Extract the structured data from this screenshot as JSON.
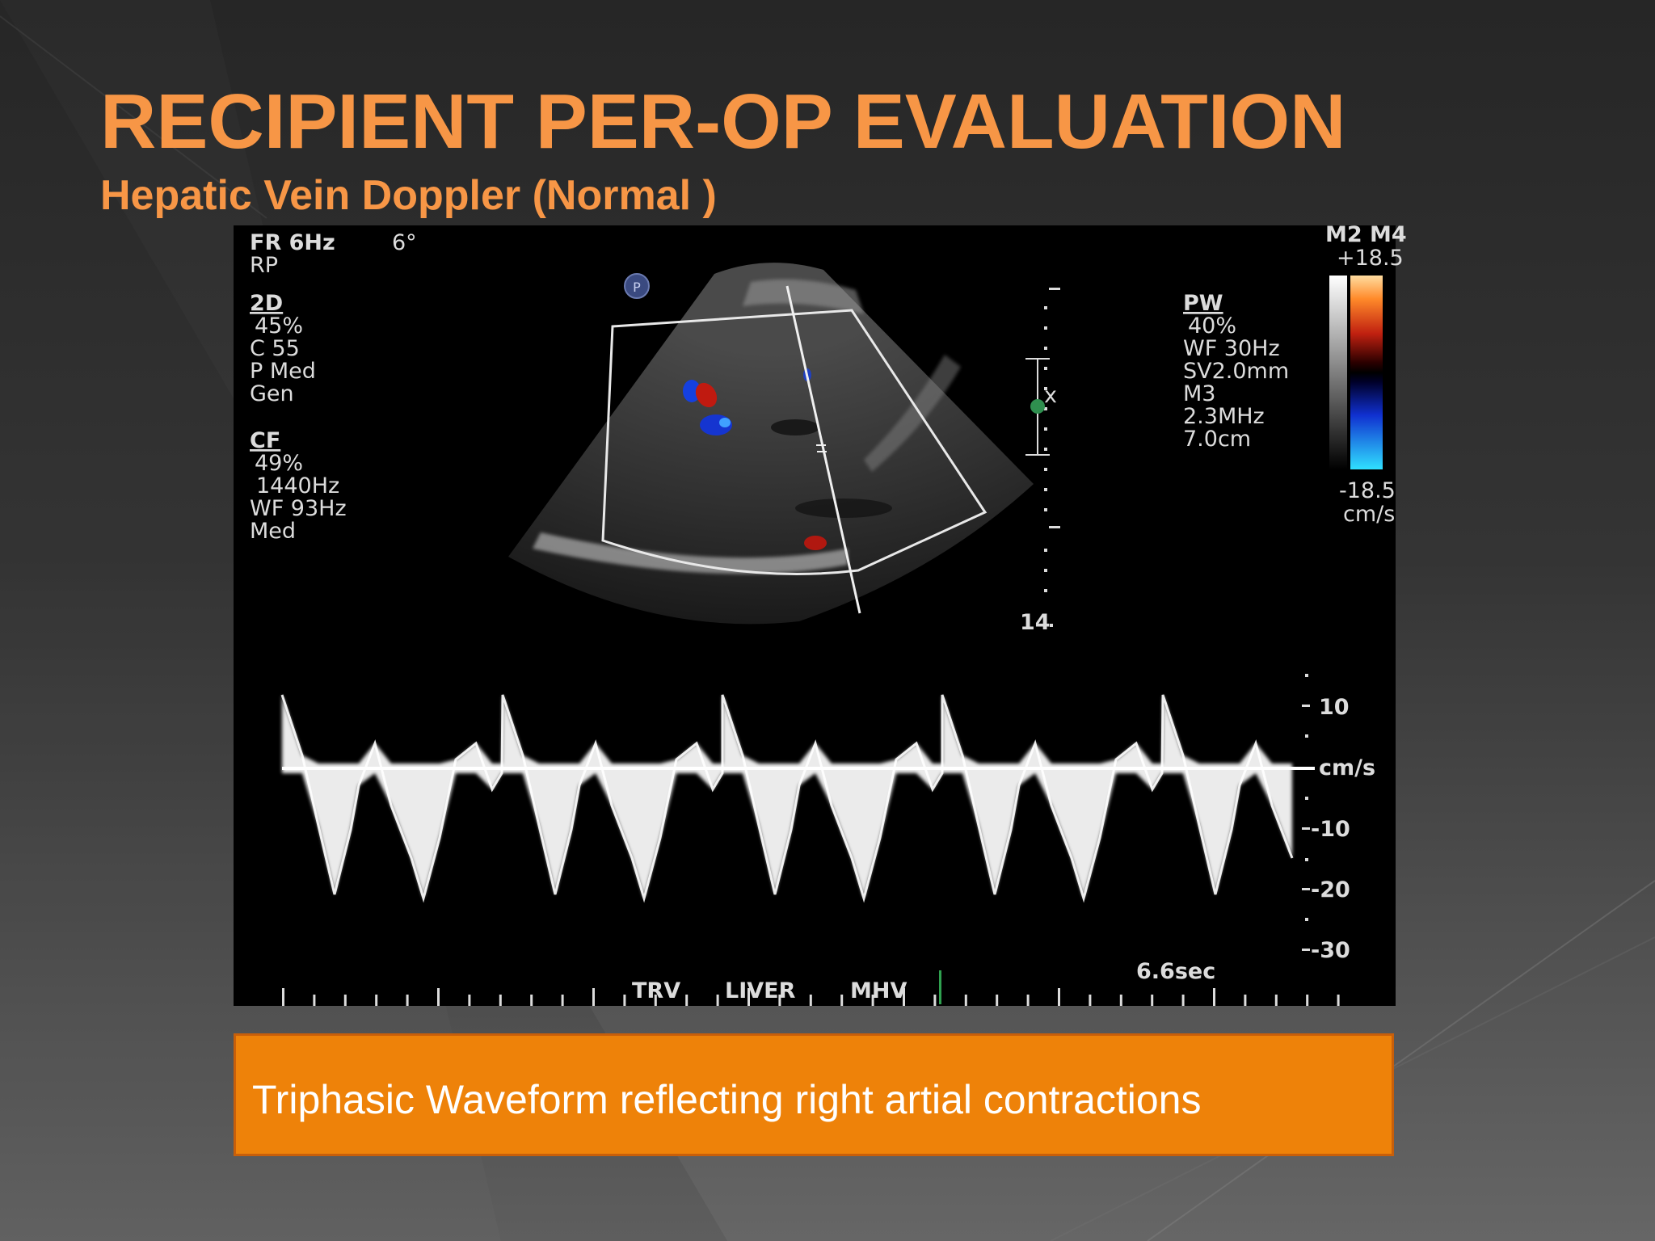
{
  "slide": {
    "title": "RECIPIENT PER-OP EVALUATION",
    "subtitle": "Hepatic Vein Doppler (Normal )",
    "caption": "Triphasic Waveform reflecting right artial contractions"
  },
  "colors": {
    "accent": "#f79646",
    "caption_bg": "#ee8209",
    "background_dark": "#2b2b2b",
    "background_light": "#5a5a5a"
  },
  "ultrasound": {
    "left_params": {
      "header": [
        "FR 6Hz",
        "6°",
        "RP"
      ],
      "mode_2d": {
        "title": "2D",
        "lines": [
          "45%",
          "C 55",
          "P Med",
          "Gen"
        ]
      },
      "mode_cf": {
        "title": "CF",
        "lines": [
          "49%",
          "1440Hz",
          "WF  93Hz",
          "Med"
        ]
      }
    },
    "probe_badge": "P",
    "depth_label": "14",
    "pw": {
      "title": "PW",
      "lines": [
        "40%",
        "WF  30Hz",
        "SV2.0mm",
        "M3",
        "2.3MHz",
        "7.0cm"
      ]
    },
    "color_scale": {
      "header": "M2 M4",
      "max": "+18.5",
      "min": "-18.5",
      "unit": "cm/s"
    },
    "velocity_scale": {
      "labels": [
        "10",
        "cm/s",
        "-10",
        "-20",
        "-30"
      ]
    },
    "bottom_labels": [
      "TRV",
      "LIVER",
      "MHV"
    ],
    "sweep_time": "6.6sec"
  }
}
